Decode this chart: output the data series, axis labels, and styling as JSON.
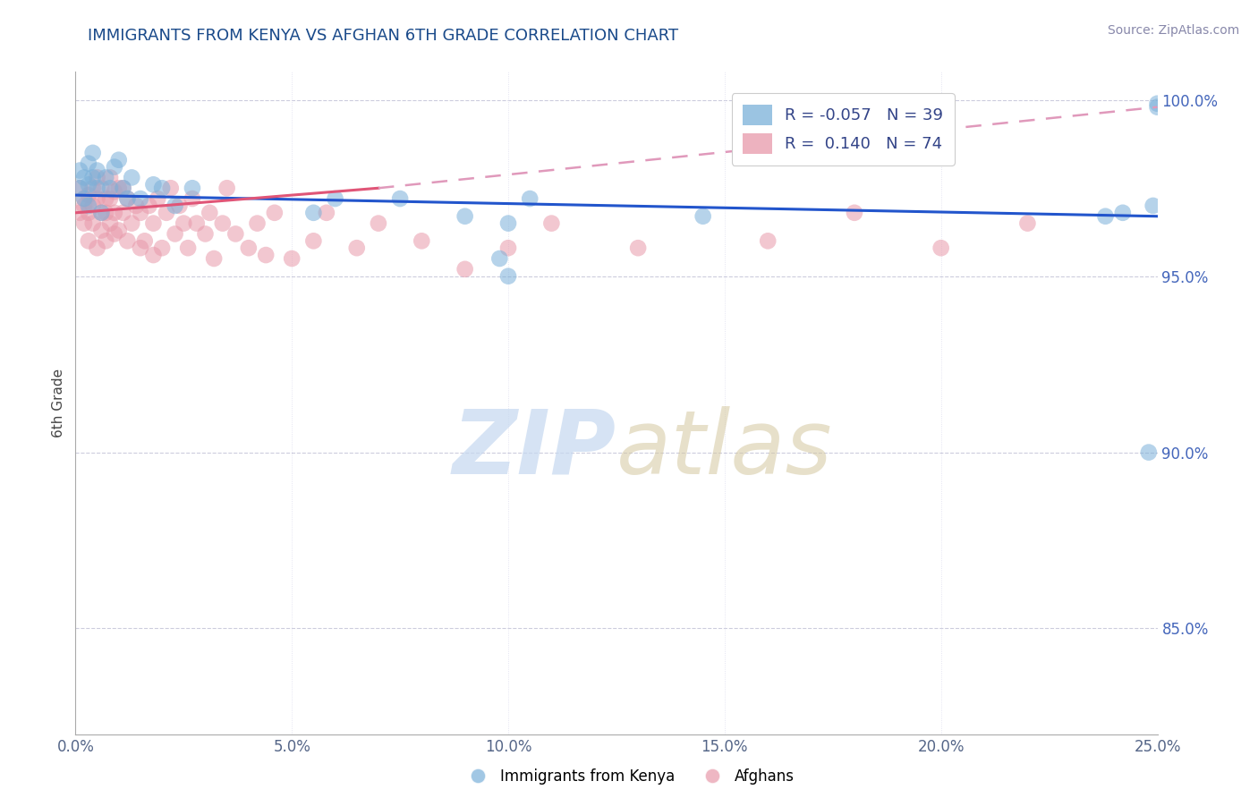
{
  "title": "IMMIGRANTS FROM KENYA VS AFGHAN 6TH GRADE CORRELATION CHART",
  "title_color": "#1a4a8a",
  "source_text": "Source: ZipAtlas.com",
  "ylabel": "6th Grade",
  "xlim": [
    0.0,
    0.25
  ],
  "ylim": [
    0.82,
    1.008
  ],
  "xtick_labels": [
    "0.0%",
    "5.0%",
    "10.0%",
    "15.0%",
    "20.0%",
    "25.0%"
  ],
  "xtick_values": [
    0.0,
    0.05,
    0.1,
    0.15,
    0.2,
    0.25
  ],
  "ytick_labels": [
    "85.0%",
    "90.0%",
    "95.0%",
    "100.0%"
  ],
  "ytick_values": [
    0.85,
    0.9,
    0.95,
    1.0
  ],
  "kenya_color": "#7ab0d9",
  "afghan_color": "#e899aa",
  "kenya_R": -0.057,
  "kenya_N": 39,
  "afghan_R": 0.14,
  "afghan_N": 74,
  "legend_label_kenya": "Immigrants from Kenya",
  "legend_label_afghan": "Afghans",
  "kenya_line_color": "#2255cc",
  "afghan_line_solid_color": "#e05577",
  "afghan_line_dash_color": "#e099bb",
  "kenya_x": [
    0.001,
    0.001,
    0.002,
    0.002,
    0.003,
    0.003,
    0.003,
    0.004,
    0.004,
    0.005,
    0.005,
    0.006,
    0.007,
    0.008,
    0.009,
    0.01,
    0.011,
    0.012,
    0.013,
    0.015,
    0.018,
    0.02,
    0.023,
    0.027,
    0.055,
    0.06,
    0.075,
    0.09,
    0.1,
    0.1,
    0.145,
    0.105,
    0.098,
    0.238,
    0.242,
    0.248,
    0.249,
    0.25,
    0.25
  ],
  "kenya_y": [
    0.98,
    0.975,
    0.978,
    0.972,
    0.982,
    0.976,
    0.97,
    0.985,
    0.978,
    0.975,
    0.98,
    0.968,
    0.978,
    0.975,
    0.981,
    0.983,
    0.975,
    0.972,
    0.978,
    0.972,
    0.976,
    0.975,
    0.97,
    0.975,
    0.968,
    0.972,
    0.972,
    0.967,
    0.965,
    0.95,
    0.967,
    0.972,
    0.955,
    0.967,
    0.968,
    0.9,
    0.97,
    0.998,
    0.999
  ],
  "afghan_x": [
    0.001,
    0.001,
    0.002,
    0.002,
    0.002,
    0.003,
    0.003,
    0.003,
    0.004,
    0.004,
    0.004,
    0.005,
    0.005,
    0.005,
    0.006,
    0.006,
    0.006,
    0.007,
    0.007,
    0.007,
    0.008,
    0.008,
    0.008,
    0.009,
    0.009,
    0.009,
    0.01,
    0.01,
    0.011,
    0.011,
    0.012,
    0.012,
    0.013,
    0.014,
    0.015,
    0.015,
    0.016,
    0.017,
    0.018,
    0.018,
    0.019,
    0.02,
    0.021,
    0.022,
    0.023,
    0.024,
    0.025,
    0.026,
    0.027,
    0.028,
    0.03,
    0.031,
    0.032,
    0.034,
    0.035,
    0.037,
    0.04,
    0.042,
    0.044,
    0.046,
    0.05,
    0.055,
    0.058,
    0.065,
    0.07,
    0.08,
    0.09,
    0.1,
    0.11,
    0.13,
    0.16,
    0.18,
    0.2,
    0.22
  ],
  "afghan_y": [
    0.968,
    0.975,
    0.965,
    0.97,
    0.972,
    0.96,
    0.968,
    0.973,
    0.975,
    0.97,
    0.965,
    0.958,
    0.972,
    0.978,
    0.963,
    0.968,
    0.975,
    0.96,
    0.968,
    0.972,
    0.965,
    0.972,
    0.978,
    0.962,
    0.968,
    0.974,
    0.975,
    0.963,
    0.968,
    0.975,
    0.96,
    0.972,
    0.965,
    0.97,
    0.958,
    0.968,
    0.96,
    0.97,
    0.956,
    0.965,
    0.972,
    0.958,
    0.968,
    0.975,
    0.962,
    0.97,
    0.965,
    0.958,
    0.972,
    0.965,
    0.962,
    0.968,
    0.955,
    0.965,
    0.975,
    0.962,
    0.958,
    0.965,
    0.956,
    0.968,
    0.955,
    0.96,
    0.968,
    0.958,
    0.965,
    0.96,
    0.952,
    0.958,
    0.965,
    0.958,
    0.96,
    0.968,
    0.958,
    0.965
  ]
}
